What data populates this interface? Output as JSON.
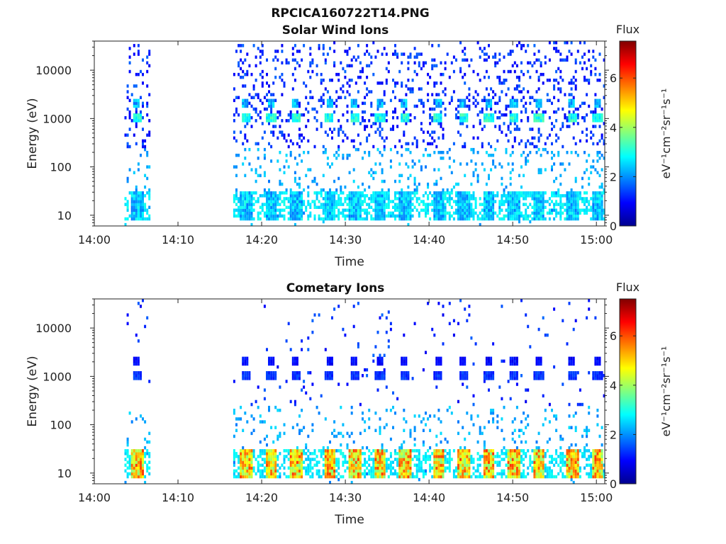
{
  "figure_title": "RPCICA160722T14.PNG",
  "colormap": [
    "#00008f",
    "#0000ff",
    "#0080ff",
    "#00ffff",
    "#80ff80",
    "#ffff00",
    "#ff8000",
    "#ff0000",
    "#800000"
  ],
  "chart_data": [
    {
      "type": "heatmap",
      "title": "Solar Wind Ions",
      "xlabel": "Time",
      "ylabel": "Energy (eV)",
      "x_ticks": [
        "14:00",
        "14:10",
        "14:20",
        "14:30",
        "14:40",
        "14:50",
        "15:00"
      ],
      "xlim": [
        "14:00",
        "15:01"
      ],
      "y_scale": "log",
      "y_ticks": [
        "10",
        "100",
        "1000",
        "10000"
      ],
      "ylim": [
        6,
        40000
      ],
      "colorbar": {
        "title": "Flux",
        "label": "eV⁻¹cm⁻²sr⁻¹s⁻¹",
        "ticks": [
          "0",
          "2",
          "4",
          "6"
        ],
        "range": [
          0,
          7.5
        ]
      },
      "data_gap": [
        "14:07",
        "14:16"
      ],
      "scan_times": [
        "14:05",
        "14:18",
        "14:21",
        "14:24",
        "14:28",
        "14:31",
        "14:34",
        "14:37",
        "14:41",
        "14:44",
        "14:47",
        "14:50",
        "14:53",
        "14:57",
        "15:00"
      ],
      "main_peak": {
        "energy_eV": 1000,
        "flux_max": 3.5
      },
      "secondary_peak": {
        "energy_eV": 2000,
        "flux_max": 2.8
      },
      "low_energy_band": {
        "energy_eV": [
          8,
          30
        ],
        "flux_max": 3.0
      }
    },
    {
      "type": "heatmap",
      "title": "Cometary Ions",
      "xlabel": "Time",
      "ylabel": "Energy (eV)",
      "x_ticks": [
        "14:00",
        "14:10",
        "14:20",
        "14:30",
        "14:40",
        "14:50",
        "15:00"
      ],
      "xlim": [
        "14:00",
        "15:01"
      ],
      "y_scale": "log",
      "y_ticks": [
        "10",
        "100",
        "1000",
        "10000"
      ],
      "ylim": [
        6,
        40000
      ],
      "colorbar": {
        "title": "Flux",
        "label": "eV⁻¹cm⁻²sr⁻¹s⁻¹",
        "ticks": [
          "0",
          "2",
          "4",
          "6"
        ],
        "range": [
          0,
          7.5
        ]
      },
      "data_gap": [
        "14:07",
        "14:16"
      ],
      "scan_times": [
        "14:05",
        "14:18",
        "14:21",
        "14:24",
        "14:28",
        "14:31",
        "14:34",
        "14:37",
        "14:41",
        "14:44",
        "14:47",
        "14:50",
        "14:53",
        "14:57",
        "15:00"
      ],
      "main_peak": {
        "energy_eV": 1000,
        "flux_max": 1.5
      },
      "secondary_peak": {
        "energy_eV": 2000,
        "flux_max": 1.2
      },
      "low_energy_band": {
        "energy_eV": [
          8,
          30
        ],
        "flux_max": 6.2
      }
    }
  ]
}
